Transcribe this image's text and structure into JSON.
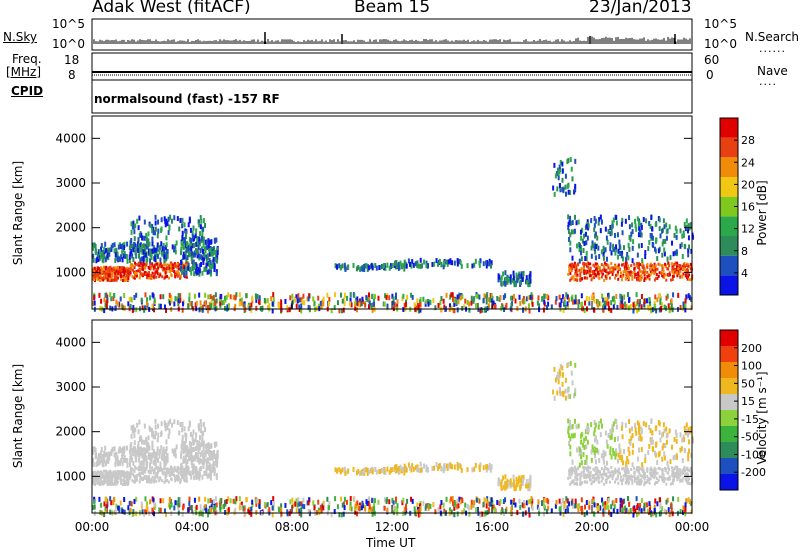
{
  "header": {
    "station": "Adak West (fitACF)",
    "beam": "Beam 15",
    "date": "23/Jan/2013"
  },
  "panel_labels": {
    "nsky": "N.Sky",
    "nsearch": "N.Search",
    "freq_line1": "Freq.",
    "freq_line2": "[MHz]",
    "nave": "Nave",
    "cpid": "CPID",
    "cpid_value": "normalsound (fast) -157 RF",
    "nsky_ticks": [
      "10^5",
      "10^0"
    ],
    "nsearch_ticks": [
      "10^5",
      "10^0"
    ],
    "freq_ticks": [
      "18",
      "8"
    ],
    "nave_ticks": [
      "60",
      "0"
    ]
  },
  "chart_data": [
    {
      "type": "heatmap",
      "panel": "power",
      "ylabel": "Slant Range [km]",
      "xlabel": "",
      "x_range": [
        0,
        24
      ],
      "ylim": [
        180,
        4500
      ],
      "yticks": [
        "1000",
        "2000",
        "3000",
        "4000"
      ],
      "colorbar": {
        "label": "Power [dB]",
        "range": [
          0,
          32
        ],
        "ticks": [
          "4",
          "8",
          "12",
          "16",
          "20",
          "24",
          "28"
        ],
        "colors": [
          "#0a14e6",
          "#1e4fbe",
          "#2e8c5a",
          "#2aa84a",
          "#7fc81e",
          "#f0c814",
          "#f08c0a",
          "#e84010",
          "#e00000"
        ]
      }
    },
    {
      "type": "heatmap",
      "panel": "velocity",
      "ylabel": "Slant Range [km]",
      "xlabel": "Time UT",
      "x_range": [
        0,
        24
      ],
      "ylim": [
        180,
        4500
      ],
      "yticks": [
        "1000",
        "2000",
        "3000",
        "4000"
      ],
      "xticks": [
        "00:00",
        "04:00",
        "08:00",
        "12:00",
        "16:00",
        "20:00",
        "00:00"
      ],
      "colorbar": {
        "label": "Velocity [m s⁻¹]",
        "range": [
          -250,
          250
        ],
        "ticks": [
          "200",
          "100",
          "50",
          "15",
          "-15",
          "-50",
          "-100",
          "-200"
        ],
        "colors": [
          "#e00000",
          "#f04010",
          "#f08c0a",
          "#f0b820",
          "#c8c8c8",
          "#8cd23c",
          "#3cb43c",
          "#2e8c5a",
          "#1e4fbe",
          "#0a14e6"
        ]
      }
    }
  ]
}
